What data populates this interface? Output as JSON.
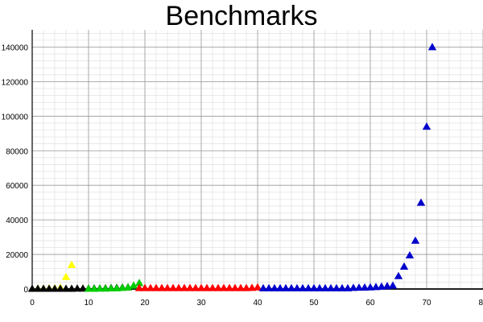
{
  "chart_data": {
    "type": "scatter",
    "title": "Benchmarks",
    "xlabel": "",
    "ylabel": "",
    "xlim": [
      0,
      80
    ],
    "ylim": [
      0,
      150000
    ],
    "x_ticks": [
      0,
      10,
      20,
      30,
      40,
      50,
      60,
      70,
      80
    ],
    "x_tick_labels": [
      "0",
      "10",
      "20",
      "30",
      "40",
      "50",
      "60",
      "70",
      "80"
    ],
    "y_ticks": [
      0,
      20000,
      40000,
      60000,
      80000,
      100000,
      120000,
      140000
    ],
    "y_tick_labels": [
      "0",
      "20000",
      "40000",
      "60000",
      "80000",
      "100000",
      "120000",
      "140000"
    ],
    "grid": true,
    "marker": "triangle",
    "series": [
      {
        "color": "#ffff00",
        "x": [
          1,
          2,
          3,
          4,
          5,
          6,
          7
        ],
        "y": [
          300,
          300,
          400,
          500,
          800,
          7000,
          14000
        ]
      },
      {
        "color": "#000000",
        "x": [
          0,
          1,
          2,
          3,
          4,
          5,
          6,
          7,
          8,
          9,
          10,
          11,
          12,
          13,
          14,
          15,
          16,
          17
        ],
        "y": [
          200,
          200,
          200,
          200,
          200,
          200,
          200,
          200,
          300,
          300,
          300,
          400,
          400,
          500,
          600,
          700,
          900,
          1000
        ]
      },
      {
        "color": "#00cc00",
        "x": [
          10,
          11,
          12,
          13,
          14,
          15,
          16,
          17,
          18,
          19
        ],
        "y": [
          200,
          200,
          300,
          300,
          400,
          500,
          700,
          1000,
          2000,
          3500
        ]
      },
      {
        "color": "#ff0000",
        "x": [
          19,
          20,
          21,
          22,
          23,
          24,
          25,
          26,
          27,
          28,
          29,
          30,
          31,
          32,
          33,
          34,
          35,
          36,
          37,
          38,
          39,
          40
        ],
        "y": [
          600,
          600,
          600,
          600,
          600,
          600,
          600,
          600,
          600,
          600,
          600,
          600,
          600,
          600,
          600,
          600,
          600,
          600,
          600,
          600,
          700,
          1000
        ]
      },
      {
        "color": "#0000cc",
        "x": [
          41,
          42,
          43,
          44,
          45,
          46,
          47,
          48,
          49,
          50,
          51,
          52,
          53,
          54,
          55,
          56,
          57,
          58,
          59,
          60,
          61,
          62,
          63,
          64,
          65,
          66,
          67,
          68,
          69,
          70,
          71
        ],
        "y": [
          500,
          500,
          500,
          500,
          500,
          500,
          500,
          500,
          500,
          500,
          500,
          500,
          500,
          500,
          500,
          500,
          700,
          800,
          900,
          1000,
          1200,
          1400,
          1700,
          2000,
          7500,
          13000,
          19500,
          28000,
          50000,
          94000,
          140000
        ]
      }
    ]
  }
}
